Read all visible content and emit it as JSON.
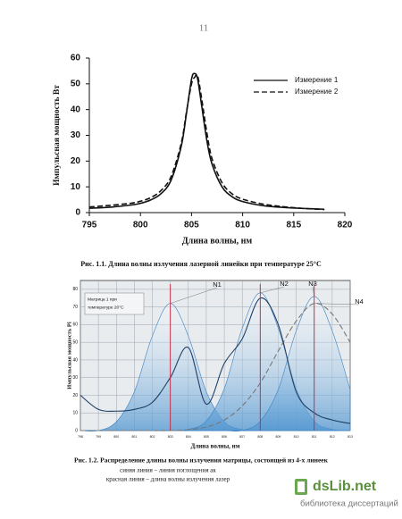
{
  "page_number": "11",
  "chart_data": [
    {
      "type": "line",
      "caption": "Рис. 1.1. Длина волны излучения лазерной линейки при температуре  25°C",
      "xlabel": "Длина волны, нм",
      "ylabel": "Импульсная мощность  Вт",
      "x": [
        795,
        797,
        799,
        800,
        801,
        802,
        803,
        804,
        804.5,
        805,
        805.3,
        805.6,
        806,
        806.5,
        807,
        808,
        809,
        810,
        812,
        814,
        816,
        818
      ],
      "series": [
        {
          "name": "Измерение 1",
          "color": "#111111",
          "dash": "solid",
          "values": [
            1.7,
            2.1,
            2.9,
            3.6,
            4.9,
            7.3,
            12.6,
            25.9,
            38.4,
            51.8,
            54,
            51.8,
            41.3,
            28,
            18.9,
            9.9,
            6.1,
            4.3,
            2.7,
            2,
            1.6,
            1.3
          ]
        },
        {
          "name": "Измерение 2",
          "color": "#111111",
          "dash": "dashed",
          "values": [
            2.2,
            2.8,
            3.6,
            4.4,
            5.8,
            8.5,
            14,
            27,
            39,
            50,
            52.5,
            53,
            44,
            31,
            21,
            11.5,
            7.2,
            5.2,
            3.3,
            2.3,
            1.6,
            1.2
          ]
        }
      ],
      "xlim": [
        795,
        820
      ],
      "xticks": [
        795,
        800,
        805,
        810,
        815,
        820
      ],
      "ylim": [
        0,
        60
      ],
      "yticks": [
        0,
        10,
        20,
        30,
        40,
        50,
        60
      ],
      "grid": false,
      "legend": "upper right"
    },
    {
      "type": "area",
      "caption": "Рис. 1.2. Распределение длины волны излучения матрицы, состоящей из 4-х линеек",
      "xlabel": "Длина волны, нм",
      "ylabel": "Импульсная мощность  Pi",
      "legend_note": [
        "Матрица   1   при",
        "температуре 20°С"
      ],
      "x": [
        798,
        799,
        800,
        801,
        802,
        803,
        804,
        805,
        806,
        807,
        808,
        809,
        810,
        811,
        812,
        813
      ],
      "series": [
        {
          "name": "N1",
          "color": "#3b82c4",
          "fill": true,
          "values": [
            0,
            0,
            5,
            22,
            53.6,
            72,
            53.6,
            22,
            5,
            0.6,
            0,
            0,
            0,
            0,
            0,
            0
          ]
        },
        {
          "name": "N2",
          "color": "#3b82c4",
          "fill": true,
          "values": [
            0,
            0,
            0,
            0,
            0,
            0,
            0.7,
            5.4,
            23.8,
            58,
            78,
            58,
            23.8,
            5.4,
            0.7,
            0
          ]
        },
        {
          "name": "N3",
          "color": "#3b82c4",
          "fill": true,
          "values": [
            0,
            0,
            0,
            0,
            0,
            0,
            0,
            0,
            0,
            0,
            5.3,
            23.2,
            56.5,
            76,
            56.5,
            23.2
          ]
        },
        {
          "name": "N4",
          "color": "#777777",
          "dash": "dashed",
          "values": [
            0,
            0,
            0,
            0,
            0,
            0,
            0.5,
            2,
            6,
            14,
            27,
            45,
            62,
            72,
            66,
            50
          ]
        },
        {
          "color": "#1f3f66",
          "dash": "solid",
          "values": [
            20,
            12,
            11,
            12,
            16,
            30,
            47,
            15,
            38,
            52,
            75,
            60,
            22,
            10,
            6,
            4
          ]
        }
      ],
      "vlines": [
        803,
        808,
        811
      ],
      "vline_color": "#c0304a",
      "xlim": [
        798,
        813
      ],
      "xticks": [
        798,
        799,
        800,
        801,
        802,
        803,
        804,
        805,
        806,
        807,
        808,
        809,
        810,
        811,
        812,
        813
      ],
      "ylim": [
        0,
        85
      ],
      "yticks": [
        0,
        10,
        20,
        30,
        40,
        50,
        60,
        70,
        80
      ],
      "grid": true
    }
  ],
  "notes": [
    "синяя линия – линия поглощения ак",
    "красная линия – длина волны излучения лазер"
  ],
  "watermark": {
    "brand": "dsLib.net",
    "subtitle": "библиотека диссертаций"
  }
}
